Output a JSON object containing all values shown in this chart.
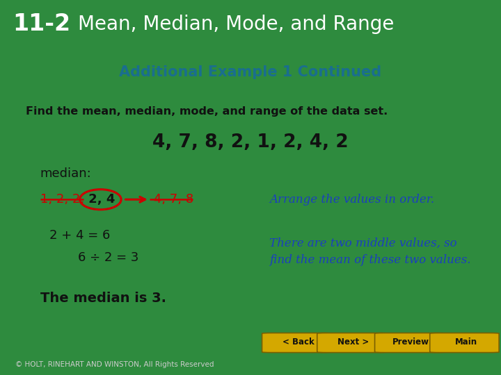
{
  "header_number": "11-2",
  "header_title": "Mean, Median, Mode, and Range",
  "header_bg": "#0d1a0d",
  "header_text_color": "#ffffff",
  "slide_bg": "#ffffff",
  "outer_bg": "#2e8b3e",
  "subtitle": "Additional Example 1 Continued",
  "subtitle_color": "#1a6e8e",
  "find_text": "Find the mean, median, mode, and range of the data set.",
  "data_set": "4, 7, 8, 2, 1, 2, 4, 2",
  "median_label": "median:",
  "left_strike": "1, 2, 2,",
  "middle_vals": " 2, 4",
  "right_strike": " 4, 7, 8",
  "arrange_text": "Arrange the values in order.",
  "calc1": "2 + 4 = 6",
  "calc2": "6 ÷ 2 = 3",
  "two_middle_line1": "There are two middle values, so",
  "two_middle_line2": "find the mean of these two values.",
  "conclusion": "The median is 3.",
  "annotation_color": "#1a3fbf",
  "strikethrough_color": "#cc0000",
  "circle_color": "#cc0000",
  "arrow_color": "#cc0000",
  "bottom_green_bg": "#2e8b3e",
  "bottom_black_bg": "#111111",
  "button_color": "#d4a800",
  "button_edge": "#7a6000",
  "button_text": [
    "< Back",
    "Next >",
    "Preview  n",
    "Main  n"
  ],
  "button_labels": [
    "< Back",
    "Next >",
    "Preview",
    "Main"
  ],
  "copyright": "© HOLT, RINEHART AND WINSTON, All Rights Reserved"
}
